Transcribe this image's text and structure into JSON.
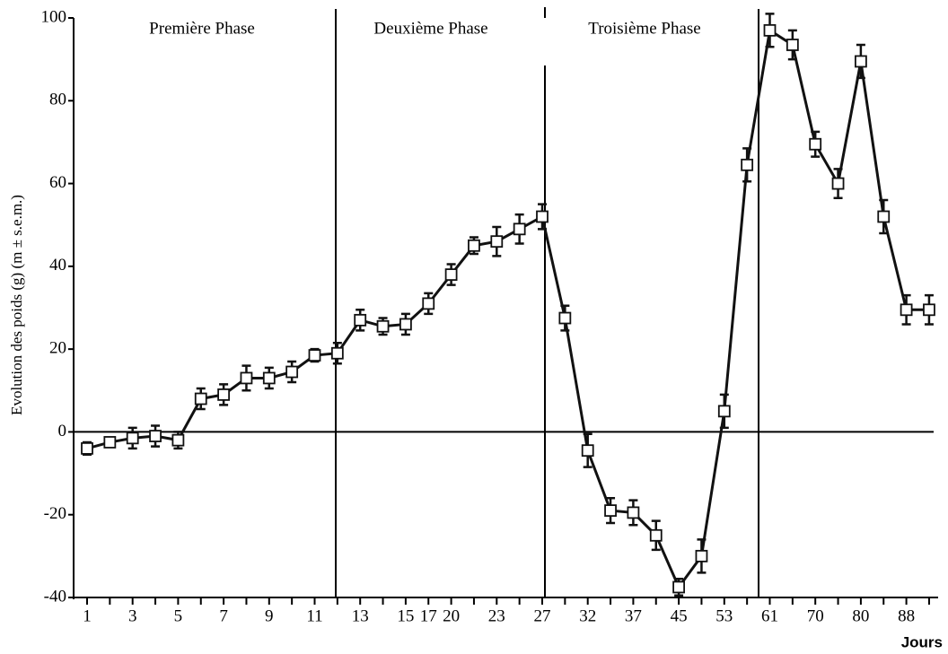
{
  "chart_data": {
    "type": "line",
    "ylabel": "Evolution des poids (g) (m ± s.e.m.)",
    "xlabel": "Jours",
    "annotations": [
      "Première Phase",
      "Deuxième Phase",
      "Troisième  Phase"
    ],
    "categories": [
      "1",
      null,
      "3",
      null,
      "5",
      null,
      "7",
      null,
      "9",
      null,
      "11",
      null,
      "13",
      null,
      "15",
      "17",
      "20",
      null,
      "23",
      null,
      "27",
      null,
      "32",
      null,
      "37",
      null,
      "45",
      null,
      "53",
      null,
      "61",
      null,
      "70",
      null,
      "80",
      null,
      "88",
      null
    ],
    "series": [
      {
        "color": "#111111",
        "values": [
          -4,
          -2.5,
          -1.5,
          -1,
          -2,
          8,
          9,
          13,
          13,
          14.5,
          18.5,
          19,
          27,
          25.5,
          26,
          31,
          38,
          45,
          46,
          49,
          52,
          27.5,
          -4.5,
          -19,
          -19.5,
          -25,
          -37.5,
          -30,
          5,
          64.5,
          97,
          93.5,
          69.5,
          60,
          89.5,
          52,
          29.5,
          29.5
        ],
        "errors": [
          1.5,
          1,
          2.5,
          2.5,
          2,
          2.5,
          2.5,
          3,
          2.5,
          2.5,
          1.5,
          2.5,
          2.5,
          2,
          2.5,
          2.5,
          2.5,
          2,
          3.5,
          3.5,
          3,
          3,
          4,
          3,
          3,
          3.5,
          2,
          4,
          4,
          4,
          4,
          3.5,
          3,
          3.5,
          4,
          4,
          3.5,
          3.5
        ]
      }
    ],
    "ylim": [
      -40,
      100
    ],
    "yticks": [
      -40,
      -20,
      0,
      20,
      40,
      60,
      80,
      100
    ]
  }
}
